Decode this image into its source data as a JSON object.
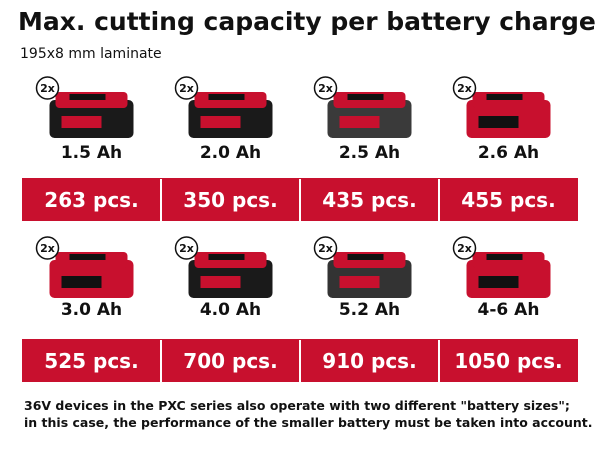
{
  "header": {
    "title": "Max. cutting capacity per battery charge",
    "subtitle": "195x8 mm laminate"
  },
  "batteries": [
    {
      "multiplier": "2x",
      "capacity": "1.5 Ah",
      "count": "263 pcs."
    },
    {
      "multiplier": "2x",
      "capacity": "2.0 Ah",
      "count": "350 pcs."
    },
    {
      "multiplier": "2x",
      "capacity": "2.5 Ah",
      "count": "435 pcs."
    },
    {
      "multiplier": "2x",
      "capacity": "2.6 Ah",
      "count": "455 pcs."
    },
    {
      "multiplier": "2x",
      "capacity": "3.0 Ah",
      "count": "525 pcs."
    },
    {
      "multiplier": "2x",
      "capacity": "4.0 Ah",
      "count": "700 pcs."
    },
    {
      "multiplier": "2x",
      "capacity": "5.2 Ah",
      "count": "910 pcs."
    },
    {
      "multiplier": "2x",
      "capacity": "4-6 Ah",
      "count": "1050 pcs."
    }
  ],
  "footer": [
    "36V devices in the PXC series also operate with two different \"battery sizes\";",
    "in this case, the performance of the smaller battery must be taken into account."
  ]
}
